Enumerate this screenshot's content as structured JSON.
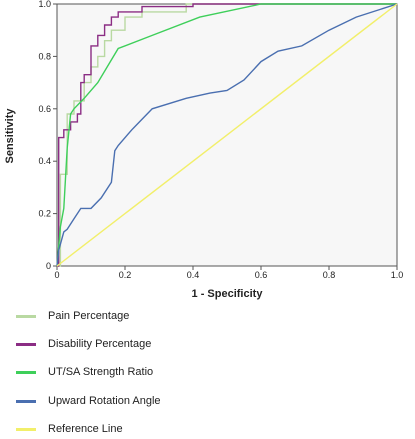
{
  "chart_data": {
    "type": "line",
    "xlabel": "1 - Specificity",
    "ylabel": "Sensitivity",
    "xlim": [
      0,
      1
    ],
    "ylim": [
      0,
      1
    ],
    "x_ticks": [
      "0",
      "0.2",
      "0.4",
      "0.6",
      "0.8",
      "1.0"
    ],
    "y_ticks": [
      "0",
      "0.2",
      "0.4",
      "0.6",
      "0.8",
      "1.0"
    ],
    "legend_placement": "below",
    "series": [
      {
        "name": "Pain Percentage",
        "color": "#b9d9a2",
        "x": [
          0,
          0.01,
          0.01,
          0.03,
          0.03,
          0.05,
          0.05,
          0.08,
          0.08,
          0.1,
          0.1,
          0.12,
          0.12,
          0.14,
          0.14,
          0.16,
          0.16,
          0.2,
          0.2,
          0.25,
          0.25,
          0.38,
          0.38,
          1.0
        ],
        "y": [
          0,
          0,
          0.35,
          0.35,
          0.58,
          0.58,
          0.63,
          0.63,
          0.7,
          0.7,
          0.76,
          0.76,
          0.8,
          0.8,
          0.86,
          0.86,
          0.9,
          0.9,
          0.95,
          0.95,
          0.97,
          0.97,
          1.0,
          1.0
        ]
      },
      {
        "name": "Disability Percentage",
        "color": "#8b2d84",
        "x": [
          0,
          0.005,
          0.005,
          0.02,
          0.02,
          0.04,
          0.04,
          0.06,
          0.06,
          0.07,
          0.07,
          0.08,
          0.08,
          0.1,
          0.1,
          0.12,
          0.12,
          0.14,
          0.14,
          0.16,
          0.16,
          0.18,
          0.18,
          0.25,
          0.25,
          0.4,
          0.4,
          1.0
        ],
        "y": [
          0,
          0,
          0.49,
          0.49,
          0.52,
          0.52,
          0.55,
          0.55,
          0.58,
          0.58,
          0.7,
          0.7,
          0.73,
          0.73,
          0.84,
          0.84,
          0.88,
          0.88,
          0.92,
          0.92,
          0.95,
          0.95,
          0.97,
          0.97,
          0.99,
          0.99,
          1.0,
          1.0
        ]
      },
      {
        "name": "UT/SA Strength Ratio",
        "color": "#3ecf5a",
        "x": [
          0,
          0.01,
          0.02,
          0.03,
          0.04,
          0.05,
          0.08,
          0.12,
          0.18,
          0.28,
          0.42,
          0.6,
          0.8,
          1.0
        ],
        "y": [
          0,
          0.15,
          0.22,
          0.45,
          0.58,
          0.6,
          0.64,
          0.7,
          0.83,
          0.88,
          0.95,
          1.0,
          1.0,
          1.0
        ]
      },
      {
        "name": "Upward Rotation Angle",
        "color": "#4a6fb0",
        "x": [
          0,
          0.005,
          0.02,
          0.03,
          0.05,
          0.07,
          0.1,
          0.13,
          0.16,
          0.17,
          0.18,
          0.22,
          0.28,
          0.38,
          0.45,
          0.5,
          0.55,
          0.6,
          0.65,
          0.72,
          0.8,
          0.88,
          1.0
        ],
        "y": [
          0,
          0.06,
          0.13,
          0.14,
          0.18,
          0.22,
          0.22,
          0.26,
          0.32,
          0.44,
          0.46,
          0.52,
          0.6,
          0.64,
          0.66,
          0.67,
          0.71,
          0.78,
          0.82,
          0.84,
          0.9,
          0.95,
          1.0
        ]
      },
      {
        "name": "Reference Line",
        "color": "#f2ef6a",
        "x": [
          0,
          1.0
        ],
        "y": [
          0,
          1.0
        ]
      }
    ]
  }
}
